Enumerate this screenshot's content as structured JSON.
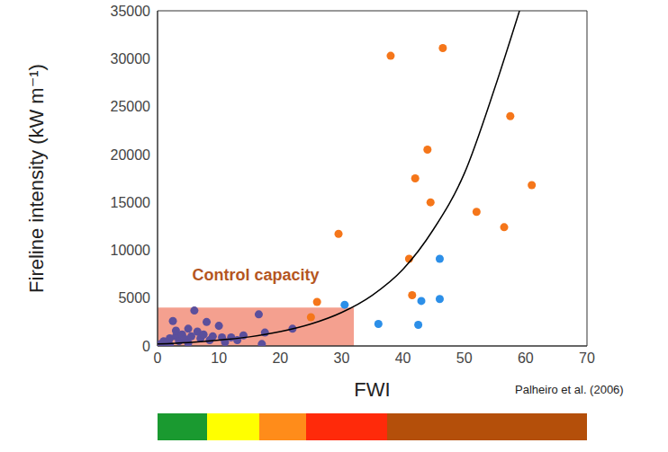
{
  "chart_data": {
    "type": "scatter",
    "x_label": "FWI",
    "y_label": "Fireline intensity (kW m⁻¹)",
    "xlim": [
      0,
      70
    ],
    "xticks": [
      0,
      10,
      20,
      30,
      40,
      50,
      60,
      70
    ],
    "ylim": [
      0,
      35000
    ],
    "yticks": [
      0,
      5000,
      10000,
      15000,
      20000,
      25000,
      30000,
      35000
    ],
    "grid": false,
    "source": "Palheiro et al. (2006)",
    "series": [
      {
        "type": "scatter",
        "marker": "circle",
        "color": "#f5761a",
        "x": [
          25,
          26,
          29.5,
          38,
          41,
          41.5,
          42,
          44,
          44.5,
          46.5,
          52,
          56.5,
          57.5,
          61
        ],
        "values": [
          3000,
          4600,
          11700,
          30300,
          9100,
          5300,
          17500,
          20500,
          15000,
          31100,
          14000,
          12400,
          24000,
          16800
        ]
      },
      {
        "type": "scatter",
        "marker": "circle",
        "color": "#2c8fe8",
        "x": [
          30.5,
          36,
          42.5,
          43,
          46,
          46
        ],
        "values": [
          4300,
          2300,
          2200,
          4700,
          9100,
          4900
        ]
      },
      {
        "type": "scatter",
        "marker": "circle",
        "color": "#5b4f9c",
        "x": [
          0.2,
          0.5,
          1,
          1.5,
          2,
          2,
          2.5,
          3,
          3,
          3.5,
          4,
          4.5,
          5,
          5,
          5.5,
          6,
          6.5,
          7,
          7.5,
          8,
          8.5,
          9,
          10,
          10.5,
          11,
          12,
          13,
          14,
          16.5,
          17,
          17.5,
          22
        ],
        "values": [
          100,
          200,
          500,
          300,
          800,
          100,
          2600,
          1000,
          1600,
          500,
          1200,
          700,
          1800,
          300,
          1000,
          3700,
          1500,
          800,
          1200,
          2500,
          600,
          1000,
          2100,
          900,
          400,
          900,
          600,
          1100,
          3300,
          200,
          1400,
          1800
        ]
      },
      {
        "type": "line",
        "line_style": "solid",
        "color": "#000000",
        "x": [
          0,
          5,
          10,
          15,
          20,
          25,
          30,
          35,
          40,
          45,
          50,
          55,
          59
        ],
        "values": [
          200,
          350,
          600,
          950,
          1500,
          2300,
          3500,
          5300,
          8000,
          12200,
          18000,
          27000,
          35000
        ]
      }
    ],
    "control_capacity": {
      "label": "Control capacity",
      "color": "#f4a08f",
      "label_color": "#b5561f",
      "xlim": [
        0,
        32
      ],
      "ylim": [
        0,
        4000
      ]
    },
    "color_bar": {
      "bounds": [
        0,
        8.1,
        16.6,
        24.2,
        37.4,
        70
      ],
      "colors": [
        "#1a9a30",
        "#ffff00",
        "#ff8c1a",
        "#ff2a0a",
        "#b44f0a"
      ]
    }
  }
}
